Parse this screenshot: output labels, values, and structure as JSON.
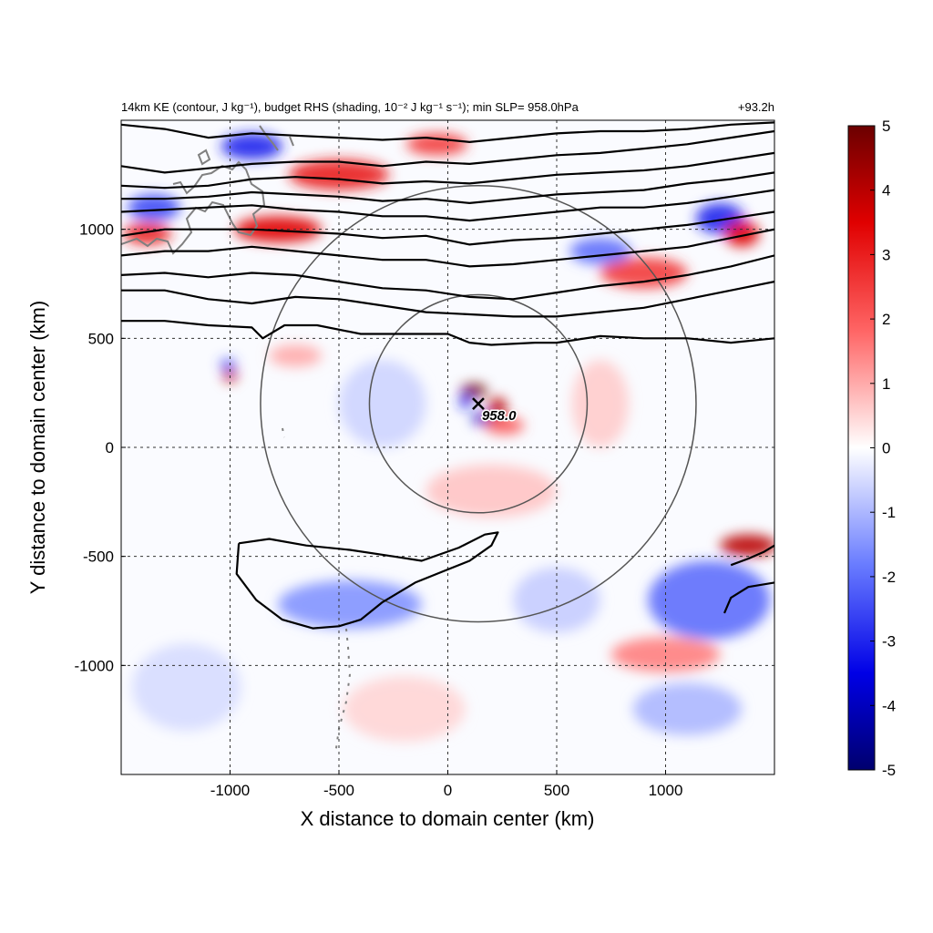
{
  "chart_data": {
    "type": "heatmap",
    "title_left": "14km KE (contour, J kg⁻¹), budget RHS (shading, 10⁻² J kg⁻¹ s⁻¹); min SLP= 958.0hPa",
    "title_right": "+93.2h",
    "xlabel": "X distance to domain center (km)",
    "ylabel": "Y distance to domain center (km)",
    "xlim": [
      -1500,
      1500
    ],
    "ylim": [
      -1500,
      1500
    ],
    "x_ticks": [
      -1000,
      -500,
      0,
      500,
      1000
    ],
    "y_ticks": [
      -1000,
      -500,
      0,
      500,
      1000
    ],
    "x_tick_labels": [
      "-1000",
      "-500",
      "0",
      "500",
      "1000"
    ],
    "y_tick_labels": [
      "-1000",
      "-500",
      "0",
      "500",
      "1000"
    ],
    "grid": "dashed",
    "colorbar": {
      "range": [
        -5,
        5
      ],
      "ticks": [
        5,
        4,
        3,
        2,
        1,
        0,
        -1,
        -2,
        -3,
        -4,
        -5
      ],
      "tick_labels": [
        "5",
        "4",
        "3",
        "2",
        "1",
        "0",
        "-1",
        "-2",
        "-3",
        "-4",
        "-5"
      ],
      "colormap": "blue-white-red",
      "colors": {
        "min": "#00006e",
        "mid": "#ffffff",
        "max": "#6b0000"
      }
    },
    "storm_center": {
      "x": 140,
      "y": 200,
      "label": "958.0"
    },
    "range_circles": [
      {
        "center_x": 140,
        "center_y": 200,
        "radius": 500
      },
      {
        "center_x": 140,
        "center_y": 200,
        "radius": 1000
      }
    ],
    "ke_contours": [
      [
        [
          -1500,
          580
        ],
        [
          -1300,
          580
        ],
        [
          -1100,
          560
        ],
        [
          -900,
          550
        ],
        [
          -850,
          500
        ],
        [
          -750,
          560
        ],
        [
          -600,
          560
        ],
        [
          -400,
          520
        ],
        [
          -200,
          520
        ],
        [
          0,
          520
        ],
        [
          100,
          480
        ],
        [
          200,
          470
        ],
        [
          400,
          480
        ],
        [
          500,
          480
        ],
        [
          700,
          510
        ],
        [
          900,
          500
        ],
        [
          1100,
          500
        ],
        [
          1300,
          480
        ],
        [
          1500,
          500
        ]
      ],
      [
        [
          -1500,
          720
        ],
        [
          -1300,
          720
        ],
        [
          -1100,
          680
        ],
        [
          -900,
          660
        ],
        [
          -700,
          690
        ],
        [
          -500,
          680
        ],
        [
          -300,
          650
        ],
        [
          -100,
          620
        ],
        [
          100,
          610
        ],
        [
          300,
          600
        ],
        [
          500,
          600
        ],
        [
          700,
          620
        ],
        [
          900,
          640
        ],
        [
          1100,
          680
        ],
        [
          1300,
          720
        ],
        [
          1500,
          760
        ]
      ],
      [
        [
          -1500,
          790
        ],
        [
          -1300,
          800
        ],
        [
          -1100,
          780
        ],
        [
          -900,
          800
        ],
        [
          -700,
          790
        ],
        [
          -500,
          760
        ],
        [
          -300,
          730
        ],
        [
          -100,
          720
        ],
        [
          100,
          690
        ],
        [
          300,
          680
        ],
        [
          500,
          710
        ],
        [
          700,
          740
        ],
        [
          900,
          760
        ],
        [
          1100,
          790
        ],
        [
          1300,
          830
        ],
        [
          1500,
          880
        ]
      ],
      [
        [
          -1500,
          880
        ],
        [
          -1300,
          900
        ],
        [
          -1100,
          900
        ],
        [
          -900,
          920
        ],
        [
          -700,
          900
        ],
        [
          -500,
          880
        ],
        [
          -300,
          860
        ],
        [
          -100,
          860
        ],
        [
          100,
          830
        ],
        [
          300,
          840
        ],
        [
          500,
          860
        ],
        [
          700,
          880
        ],
        [
          900,
          900
        ],
        [
          1100,
          920
        ],
        [
          1300,
          960
        ],
        [
          1500,
          1000
        ]
      ],
      [
        [
          -1500,
          970
        ],
        [
          -1300,
          1000
        ],
        [
          -1100,
          1000
        ],
        [
          -900,
          1000
        ],
        [
          -700,
          990
        ],
        [
          -500,
          980
        ],
        [
          -300,
          960
        ],
        [
          -100,
          970
        ],
        [
          100,
          930
        ],
        [
          300,
          950
        ],
        [
          500,
          960
        ],
        [
          700,
          980
        ],
        [
          900,
          1000
        ],
        [
          1100,
          1020
        ],
        [
          1300,
          1050
        ],
        [
          1500,
          1080
        ]
      ],
      [
        [
          -1500,
          1080
        ],
        [
          -1300,
          1090
        ],
        [
          -1100,
          1100
        ],
        [
          -900,
          1110
        ],
        [
          -700,
          1090
        ],
        [
          -500,
          1080
        ],
        [
          -300,
          1060
        ],
        [
          -100,
          1060
        ],
        [
          100,
          1040
        ],
        [
          300,
          1060
        ],
        [
          500,
          1080
        ],
        [
          700,
          1100
        ],
        [
          900,
          1100
        ],
        [
          1100,
          1120
        ],
        [
          1300,
          1150
        ],
        [
          1500,
          1180
        ]
      ],
      [
        [
          -1500,
          1140
        ],
        [
          -1300,
          1140
        ],
        [
          -1100,
          1150
        ],
        [
          -900,
          1170
        ],
        [
          -700,
          1160
        ],
        [
          -500,
          1150
        ],
        [
          -300,
          1130
        ],
        [
          -100,
          1140
        ],
        [
          100,
          1120
        ],
        [
          300,
          1140
        ],
        [
          500,
          1160
        ],
        [
          700,
          1170
        ],
        [
          900,
          1180
        ],
        [
          1100,
          1210
        ],
        [
          1300,
          1230
        ],
        [
          1500,
          1260
        ]
      ],
      [
        [
          -1500,
          1200
        ],
        [
          -1300,
          1190
        ],
        [
          -1100,
          1200
        ],
        [
          -900,
          1230
        ],
        [
          -700,
          1240
        ],
        [
          -500,
          1230
        ],
        [
          -300,
          1210
        ],
        [
          -100,
          1220
        ],
        [
          100,
          1210
        ],
        [
          300,
          1230
        ],
        [
          500,
          1250
        ],
        [
          700,
          1260
        ],
        [
          900,
          1270
        ],
        [
          1100,
          1290
        ],
        [
          1300,
          1320
        ],
        [
          1500,
          1350
        ]
      ],
      [
        [
          -1500,
          1290
        ],
        [
          -1300,
          1260
        ],
        [
          -1100,
          1280
        ],
        [
          -900,
          1300
        ],
        [
          -700,
          1310
        ],
        [
          -500,
          1310
        ],
        [
          -300,
          1290
        ],
        [
          -100,
          1310
        ],
        [
          100,
          1300
        ],
        [
          300,
          1320
        ],
        [
          500,
          1340
        ],
        [
          700,
          1350
        ],
        [
          900,
          1370
        ],
        [
          1100,
          1390
        ],
        [
          1300,
          1420
        ],
        [
          1500,
          1450
        ]
      ],
      [
        [
          -1500,
          1480
        ],
        [
          -1300,
          1460
        ],
        [
          -1100,
          1420
        ],
        [
          -900,
          1440
        ],
        [
          -700,
          1430
        ],
        [
          -500,
          1420
        ],
        [
          -300,
          1410
        ],
        [
          -100,
          1420
        ],
        [
          100,
          1400
        ],
        [
          300,
          1420
        ],
        [
          500,
          1440
        ],
        [
          700,
          1450
        ],
        [
          900,
          1450
        ],
        [
          1100,
          1460
        ],
        [
          1300,
          1480
        ],
        [
          1500,
          1490
        ]
      ],
      [
        [
          -960,
          -440
        ],
        [
          -820,
          -420
        ],
        [
          -650,
          -450
        ],
        [
          -450,
          -470
        ],
        [
          -250,
          -500
        ],
        [
          -120,
          -520
        ],
        [
          50,
          -460
        ],
        [
          170,
          -400
        ],
        [
          230,
          -390
        ],
        [
          200,
          -450
        ],
        [
          100,
          -520
        ],
        [
          0,
          -560
        ],
        [
          -150,
          -620
        ],
        [
          -300,
          -710
        ],
        [
          -400,
          -790
        ],
        [
          -500,
          -820
        ],
        [
          -620,
          -830
        ],
        [
          -760,
          -790
        ],
        [
          -880,
          -700
        ],
        [
          -970,
          -580
        ],
        [
          -960,
          -440
        ]
      ],
      [
        [
          1270,
          -760
        ],
        [
          1300,
          -690
        ],
        [
          1380,
          -640
        ],
        [
          1500,
          -620
        ]
      ],
      [
        [
          1300,
          -540
        ],
        [
          1380,
          -510
        ],
        [
          1450,
          -480
        ],
        [
          1500,
          -450
        ]
      ]
    ],
    "shading_features": [
      {
        "x": 120,
        "y": 260,
        "rx": 60,
        "ry": 30,
        "value": 5
      },
      {
        "x": 230,
        "y": 180,
        "rx": 40,
        "ry": 50,
        "value": 4
      },
      {
        "x": 160,
        "y": 130,
        "rx": 50,
        "ry": 25,
        "value": -4
      },
      {
        "x": 80,
        "y": 210,
        "rx": 25,
        "ry": 35,
        "value": -3
      },
      {
        "x": 260,
        "y": 100,
        "rx": 90,
        "ry": 40,
        "value": 2
      },
      {
        "x": -780,
        "y": 1000,
        "rx": 200,
        "ry": 60,
        "value": 3.5
      },
      {
        "x": -500,
        "y": 1250,
        "rx": 230,
        "ry": 70,
        "value": 3
      },
      {
        "x": -900,
        "y": 1380,
        "rx": 140,
        "ry": 60,
        "value": -3
      },
      {
        "x": -1350,
        "y": 1100,
        "rx": 120,
        "ry": 60,
        "value": -2.5
      },
      {
        "x": -1380,
        "y": 980,
        "rx": 110,
        "ry": 50,
        "value": 3
      },
      {
        "x": 1250,
        "y": 1050,
        "rx": 110,
        "ry": 70,
        "value": -3
      },
      {
        "x": 1350,
        "y": 980,
        "rx": 80,
        "ry": 60,
        "value": 3.5
      },
      {
        "x": 900,
        "y": 800,
        "rx": 200,
        "ry": 70,
        "value": 2.5
      },
      {
        "x": 700,
        "y": 900,
        "rx": 140,
        "ry": 60,
        "value": -2
      },
      {
        "x": -50,
        "y": 1390,
        "rx": 140,
        "ry": 50,
        "value": 2.5
      },
      {
        "x": -1000,
        "y": 330,
        "rx": 30,
        "ry": 30,
        "value": 4
      },
      {
        "x": -1010,
        "y": 380,
        "rx": 35,
        "ry": 25,
        "value": -2.5
      },
      {
        "x": -700,
        "y": 420,
        "rx": 120,
        "ry": 50,
        "value": 1
      },
      {
        "x": -450,
        "y": -720,
        "rx": 330,
        "ry": 110,
        "value": -1.5
      },
      {
        "x": 1200,
        "y": -700,
        "rx": 280,
        "ry": 180,
        "value": -2
      },
      {
        "x": 1380,
        "y": -450,
        "rx": 130,
        "ry": 50,
        "value": 4
      },
      {
        "x": 1000,
        "y": -950,
        "rx": 250,
        "ry": 80,
        "value": 1.5
      },
      {
        "x": 1100,
        "y": -1200,
        "rx": 250,
        "ry": 120,
        "value": -1
      },
      {
        "x": 200,
        "y": -200,
        "rx": 300,
        "ry": 120,
        "value": 0.7
      },
      {
        "x": 700,
        "y": 200,
        "rx": 130,
        "ry": 200,
        "value": 0.6
      },
      {
        "x": -300,
        "y": 200,
        "rx": 200,
        "ry": 200,
        "value": -0.6
      },
      {
        "x": -1200,
        "y": -1100,
        "rx": 250,
        "ry": 200,
        "value": -0.5
      },
      {
        "x": -200,
        "y": -1200,
        "rx": 280,
        "ry": 150,
        "value": 0.5
      },
      {
        "x": 500,
        "y": -700,
        "rx": 200,
        "ry": 150,
        "value": -0.7
      }
    ]
  }
}
